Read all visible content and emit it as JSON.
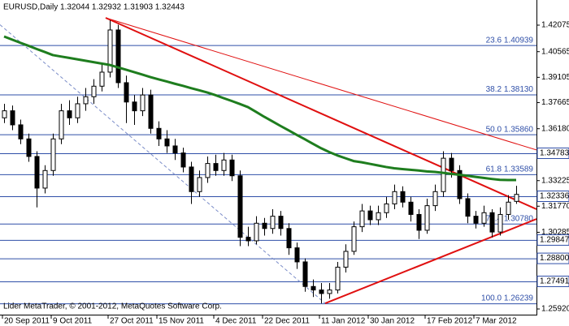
{
  "chart_data": {
    "type": "candlestick",
    "title": "EURUSD,Daily  1.32044 1.32932 1.31903 1.32443",
    "footer": "Lider MetaTrader, © 2001-2012, MetaQuotes Software Corp.",
    "categories": [
      "20 Sep 2011",
      null,
      null,
      null,
      null,
      null,
      "9 Oct 2011",
      null,
      null,
      null,
      null,
      null,
      null,
      "27 Oct 2011",
      null,
      null,
      null,
      null,
      null,
      "15 Nov 2011",
      null,
      null,
      null,
      null,
      null,
      null,
      "4 Dec 2011",
      null,
      null,
      null,
      null,
      null,
      "22 Dec 2011",
      null,
      null,
      null,
      null,
      null,
      null,
      "11 Jan 2012",
      null,
      null,
      null,
      null,
      null,
      "30 Jan 2012",
      null,
      null,
      null,
      null,
      null,
      null,
      "17 Feb 2012",
      null,
      null,
      null,
      null,
      null,
      "7 Mar 2012",
      null,
      null,
      null,
      null,
      null
    ],
    "open": [
      1.368,
      1.372,
      1.364,
      1.356,
      1.346,
      1.328,
      1.338,
      1.356,
      1.372,
      1.368,
      1.376,
      1.38,
      1.386,
      1.394,
      1.418,
      1.388,
      1.377,
      1.372,
      1.381,
      1.362,
      1.356,
      1.352,
      1.348,
      1.34,
      1.326,
      1.334,
      1.342,
      1.338,
      1.344,
      1.335,
      1.3,
      1.298,
      1.308,
      1.305,
      1.312,
      1.305,
      1.294,
      1.286,
      1.272,
      1.27,
      1.268,
      1.27,
      1.283,
      1.292,
      1.306,
      1.315,
      1.31,
      1.314,
      1.319,
      1.326,
      1.32,
      1.313,
      1.304,
      1.318,
      1.326,
      1.345,
      1.338,
      1.322,
      1.312,
      1.308,
      1.314,
      1.303,
      1.313,
      1.32044
    ],
    "high": [
      1.376,
      1.375,
      1.367,
      1.359,
      1.349,
      1.341,
      1.359,
      1.376,
      1.378,
      1.38,
      1.385,
      1.39,
      1.399,
      1.4235,
      1.421,
      1.392,
      1.381,
      1.385,
      1.384,
      1.366,
      1.361,
      1.356,
      1.351,
      1.343,
      1.338,
      1.346,
      1.347,
      1.348,
      1.347,
      1.338,
      1.306,
      1.312,
      1.311,
      1.316,
      1.315,
      1.308,
      1.297,
      1.288,
      1.276,
      1.274,
      1.274,
      1.286,
      1.296,
      1.309,
      1.319,
      1.318,
      1.318,
      1.323,
      1.33,
      1.329,
      1.323,
      1.316,
      1.322,
      1.33,
      1.349,
      1.348,
      1.341,
      1.325,
      1.315,
      1.318,
      1.316,
      1.317,
      1.324,
      1.32932
    ],
    "low": [
      1.365,
      1.361,
      1.353,
      1.343,
      1.317,
      1.325,
      1.335,
      1.353,
      1.364,
      1.365,
      1.372,
      1.376,
      1.383,
      1.391,
      1.385,
      1.365,
      1.364,
      1.369,
      1.359,
      1.352,
      1.348,
      1.344,
      1.337,
      1.319,
      1.323,
      1.331,
      1.335,
      1.335,
      1.332,
      1.295,
      1.295,
      1.296,
      1.301,
      1.302,
      1.301,
      1.29,
      1.282,
      1.269,
      1.266,
      1.2624,
      1.265,
      1.268,
      1.28,
      1.29,
      1.303,
      1.307,
      1.307,
      1.311,
      1.316,
      1.317,
      1.309,
      1.299,
      1.302,
      1.315,
      1.323,
      1.334,
      1.319,
      1.308,
      1.305,
      1.306,
      1.3,
      1.301,
      1.31,
      1.31903
    ],
    "close": [
      1.372,
      1.364,
      1.356,
      1.346,
      1.328,
      1.338,
      1.356,
      1.372,
      1.368,
      1.376,
      1.38,
      1.386,
      1.394,
      1.418,
      1.388,
      1.377,
      1.372,
      1.381,
      1.362,
      1.356,
      1.352,
      1.348,
      1.34,
      1.326,
      1.334,
      1.342,
      1.338,
      1.344,
      1.335,
      1.3,
      1.298,
      1.308,
      1.305,
      1.312,
      1.305,
      1.294,
      1.286,
      1.272,
      1.27,
      1.268,
      1.27,
      1.283,
      1.292,
      1.306,
      1.315,
      1.31,
      1.314,
      1.319,
      1.326,
      1.32,
      1.313,
      1.304,
      1.318,
      1.326,
      1.345,
      1.338,
      1.322,
      1.312,
      1.308,
      1.314,
      1.303,
      1.313,
      1.32,
      1.32443
    ],
    "up_color": "#ffffff",
    "down_color": "#000000",
    "moving_average": {
      "color": "#1e7d1e",
      "values": [
        1.4143,
        1.4125,
        1.4107,
        1.409,
        1.4072,
        1.4055,
        1.4037,
        1.4029,
        1.4021,
        1.4013,
        1.4005,
        1.3997,
        1.3989,
        1.3981,
        1.3967,
        1.3954,
        1.394,
        1.3926,
        1.3912,
        1.3899,
        1.3887,
        1.3874,
        1.3862,
        1.3849,
        1.3837,
        1.3824,
        1.3809,
        1.3792,
        1.3776,
        1.3759,
        1.3741,
        1.3714,
        1.3686,
        1.366,
        1.3634,
        1.3609,
        1.3583,
        1.3558,
        1.3532,
        1.3507,
        1.3485,
        1.3466,
        1.345,
        1.3434,
        1.3427,
        1.3418,
        1.3409,
        1.34,
        1.3393,
        1.3388,
        1.3384,
        1.338,
        1.3375,
        1.3372,
        1.3367,
        1.3361,
        1.3356,
        1.335,
        1.3344,
        1.3338,
        1.3332,
        1.3327,
        1.3326,
        1.3326
      ]
    },
    "trendlines": [
      {
        "color": "#e01010",
        "width": 2,
        "x": [
          12.5,
          65.5
        ],
        "values": [
          1.4249,
          1.316
        ]
      },
      {
        "color": "#e01010",
        "width": 1,
        "x": [
          12.5,
          65.5
        ],
        "values": [
          1.4249,
          1.3497
        ]
      },
      {
        "color": "#e01010",
        "width": 2,
        "x": [
          39.5,
          65.5
        ],
        "values": [
          1.2624,
          1.3104
        ]
      },
      {
        "color": "#7a8cc8",
        "width": 1,
        "dashed": true,
        "x": [
          -0.5,
          39.5
        ],
        "values": [
          1.421,
          1.2624
        ]
      }
    ],
    "level_color": "#2f4fa8",
    "fib_levels": [
      {
        "value": 1.40939,
        "label": "23.6 1.40939"
      },
      {
        "value": 1.3813,
        "label": "38.2 1.38130"
      },
      {
        "value": 1.3586,
        "label": "50.0 1.35860"
      },
      {
        "value": 1.33589,
        "label": "61.8 1.33589"
      },
      {
        "value": 1.3078,
        "label": "76.4 1.30780"
      },
      {
        "value": 1.26239,
        "label": "100.0 1.26239"
      }
    ],
    "levels": [
      1.34783,
      1.32336,
      1.29847,
      {
        "value": 1.288,
        "label": "1.28800"
      },
      1.27491
    ],
    "xlim": [
      -0.5,
      65.5
    ],
    "ylim": [
      1.25597,
      1.43506
    ],
    "yticks": [
      1.42075,
      1.40565,
      1.39105,
      1.37665,
      {
        "value": 1.3618,
        "label": "1.36180"
      },
      1.33225,
      {
        "value": 1.3177,
        "label": "1.31770"
      },
      1.30285,
      {
        "value": 1.2592,
        "label": "1.25920"
      }
    ]
  }
}
